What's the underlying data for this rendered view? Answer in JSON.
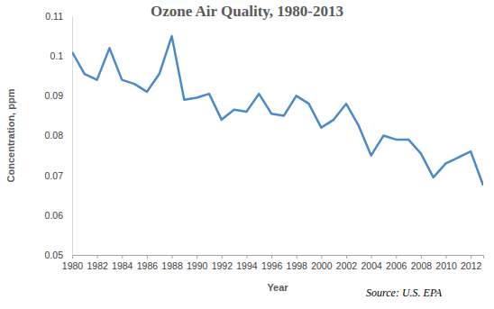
{
  "chart_data": {
    "type": "line",
    "title": "Ozone Air Quality, 1980-2013",
    "x_label": "Year",
    "y_label": "Concentration, ppm",
    "annotation": "Source: U.S. EPA",
    "x": [
      1980,
      1981,
      1982,
      1983,
      1984,
      1985,
      1986,
      1987,
      1988,
      1989,
      1990,
      1991,
      1992,
      1993,
      1994,
      1995,
      1996,
      1997,
      1998,
      1999,
      2000,
      2001,
      2002,
      2003,
      2004,
      2005,
      2006,
      2007,
      2008,
      2009,
      2010,
      2011,
      2012,
      2013
    ],
    "values": [
      0.101,
      0.0955,
      0.094,
      0.102,
      0.094,
      0.093,
      0.091,
      0.0955,
      0.105,
      0.089,
      0.0895,
      0.0905,
      0.084,
      0.0865,
      0.086,
      0.0905,
      0.0855,
      0.085,
      0.09,
      0.088,
      0.082,
      0.084,
      0.088,
      0.0825,
      0.075,
      0.08,
      0.079,
      0.079,
      0.0755,
      0.0695,
      0.073,
      0.0745,
      0.076,
      0.0675
    ],
    "color": "#4a8ac6",
    "xlim": [
      1980,
      2013
    ],
    "xticks": [
      1980,
      1982,
      1984,
      1986,
      1988,
      1990,
      1992,
      1994,
      1996,
      1998,
      2000,
      2002,
      2004,
      2006,
      2008,
      2010,
      2012
    ],
    "ylim": [
      0.05,
      0.11
    ],
    "yticks": [
      0.05,
      0.06,
      0.07,
      0.08,
      0.09,
      0.1,
      0.11
    ],
    "grid": false
  }
}
